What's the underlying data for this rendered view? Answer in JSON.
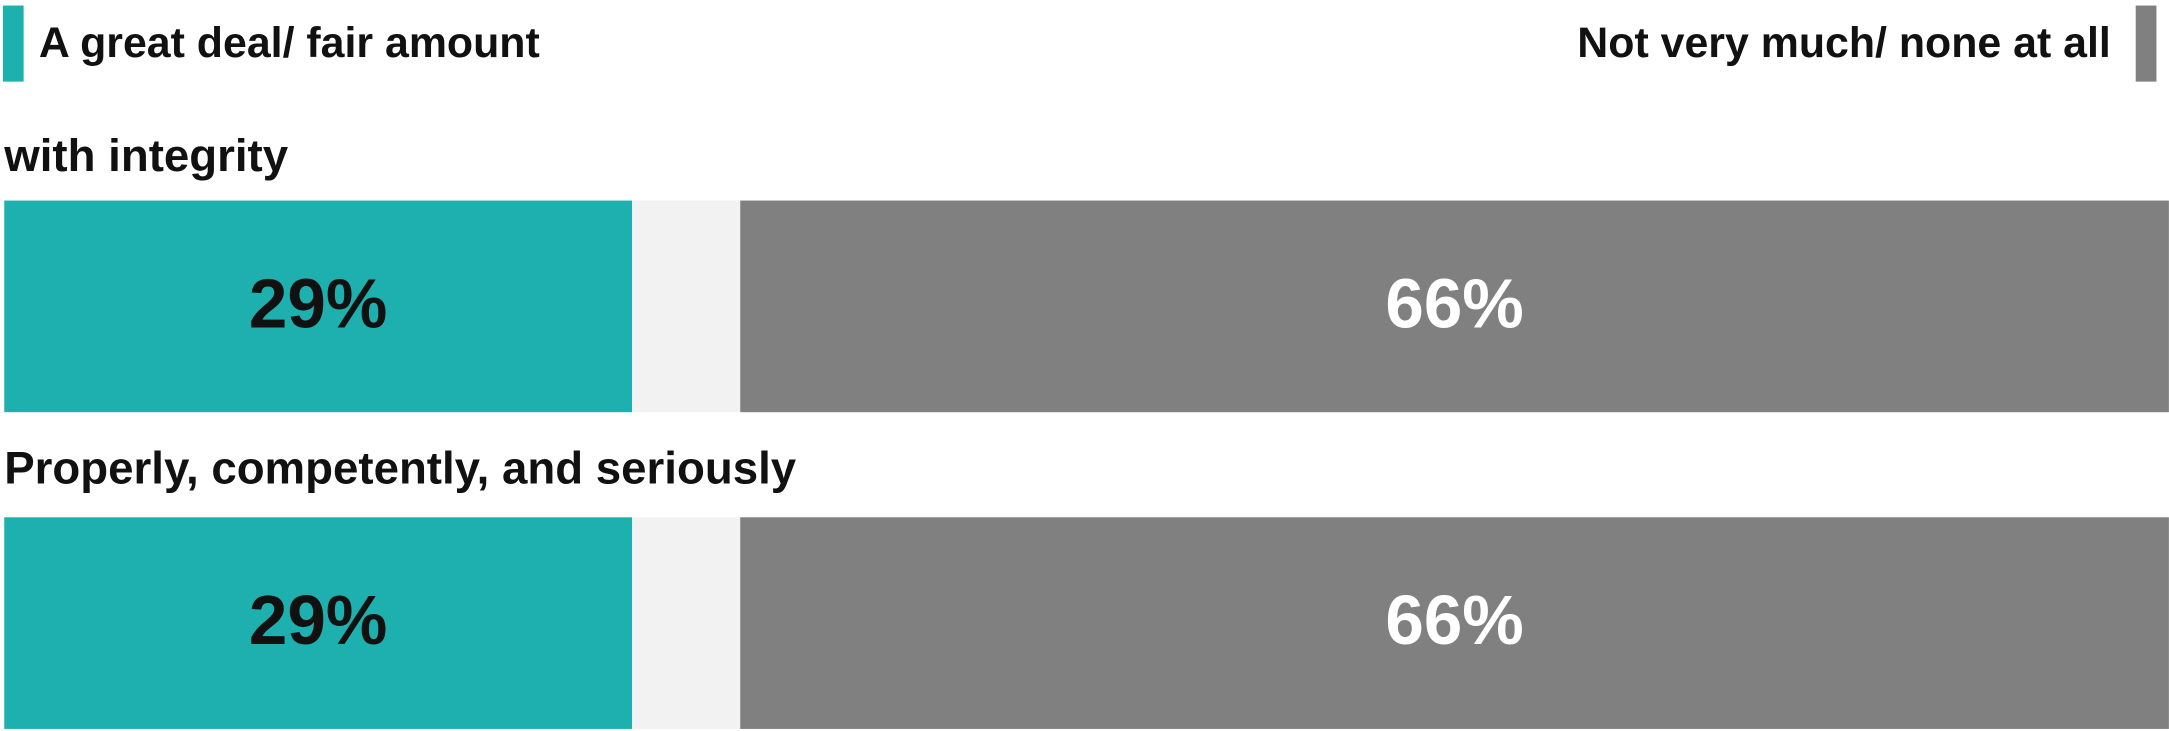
{
  "chart_data": {
    "type": "bar",
    "orientation": "horizontal",
    "categories": [
      "with integrity",
      "Properly, competently, and seriously"
    ],
    "series": [
      {
        "name": "A great deal/ fair amount",
        "color": "#1eafaf",
        "label_color": "#111111",
        "values": [
          29,
          29
        ],
        "value_labels": [
          "29%",
          "29%"
        ]
      },
      {
        "name": "Not very much/ none at all",
        "color": "#808080",
        "label_color": "#ffffff",
        "values": [
          66,
          66
        ],
        "value_labels": [
          "66%",
          "66%"
        ]
      }
    ],
    "xlim": [
      0,
      100
    ]
  }
}
